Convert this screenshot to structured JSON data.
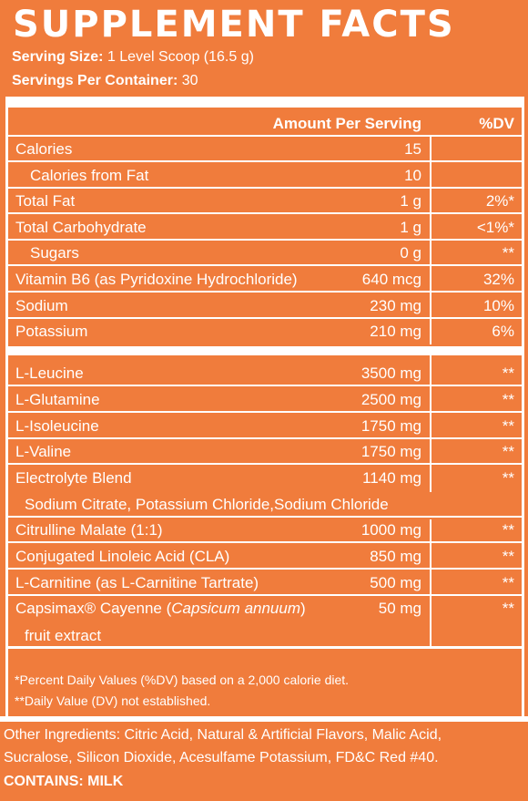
{
  "title": "SUPPLEMENT FACTS",
  "serving_size_label": "Serving Size:",
  "serving_size_value": "1 Level Scoop (16.5 g)",
  "servings_label": "Servings Per Container:",
  "servings_value": "30",
  "header": {
    "amount": "Amount Per Serving",
    "dv": "%DV"
  },
  "section1": [
    {
      "name": "Calories",
      "amount": "15",
      "dv": "",
      "indent": false
    },
    {
      "name": "Calories from Fat",
      "amount": "10",
      "dv": "",
      "indent": true
    },
    {
      "name": "Total Fat",
      "amount": "1 g",
      "dv": "2%*",
      "indent": false
    },
    {
      "name": "Total Carbohydrate",
      "amount": "1 g",
      "dv": "<1%*",
      "indent": false
    },
    {
      "name": "Sugars",
      "amount": "0 g",
      "dv": "**",
      "indent": true
    },
    {
      "name": "Vitamin B6 (as Pyridoxine Hydrochloride)",
      "amount": "640 mcg",
      "dv": "32%",
      "indent": false
    },
    {
      "name": "Sodium",
      "amount": "230 mg",
      "dv": "10%",
      "indent": false
    },
    {
      "name": "Potassium",
      "amount": "210 mg",
      "dv": "6%",
      "indent": false
    }
  ],
  "section2": [
    {
      "name": "L-Leucine",
      "amount": "3500 mg",
      "dv": "**"
    },
    {
      "name": "L-Glutamine",
      "amount": "2500 mg",
      "dv": "**"
    },
    {
      "name": "L-Isoleucine",
      "amount": "1750 mg",
      "dv": "**"
    },
    {
      "name": "L-Valine",
      "amount": "1750 mg",
      "dv": "**"
    },
    {
      "name": "Electrolyte Blend",
      "amount": "1140 mg",
      "dv": "**"
    }
  ],
  "electrolyte_sub": "Sodium Citrate, Potassium Chloride,Sodium Chloride",
  "section3": [
    {
      "name": "Citrulline Malate (1:1)",
      "amount": "1000 mg",
      "dv": "**"
    },
    {
      "name": "Conjugated Linoleic Acid (CLA)",
      "amount": "850 mg",
      "dv": "**"
    },
    {
      "name": "L-Carnitine (as L-Carnitine Tartrate)",
      "amount": "500 mg",
      "dv": "**"
    }
  ],
  "capsimax": {
    "name_prefix": "Capsimax® Cayenne (",
    "name_italic": "Capsicum annuum",
    "name_suffix": ")",
    "line2": "fruit extract",
    "amount": "50 mg",
    "dv": "**"
  },
  "footnote1": "*Percent Daily Values (%DV) based on a 2,000 calorie diet.",
  "footnote2": "**Daily Value (DV) not established.",
  "other_ingredients_line1": "Other Ingredients: Citric Acid, Natural & Artificial Flavors, Malic Acid,",
  "other_ingredients_line2": "Sucralose, Silicon Dioxide, Acesulfame Potassium, FD&C Red #40.",
  "contains": "CONTAINS: MILK",
  "colors": {
    "background": "#f07c3c",
    "text": "#ffffff"
  }
}
